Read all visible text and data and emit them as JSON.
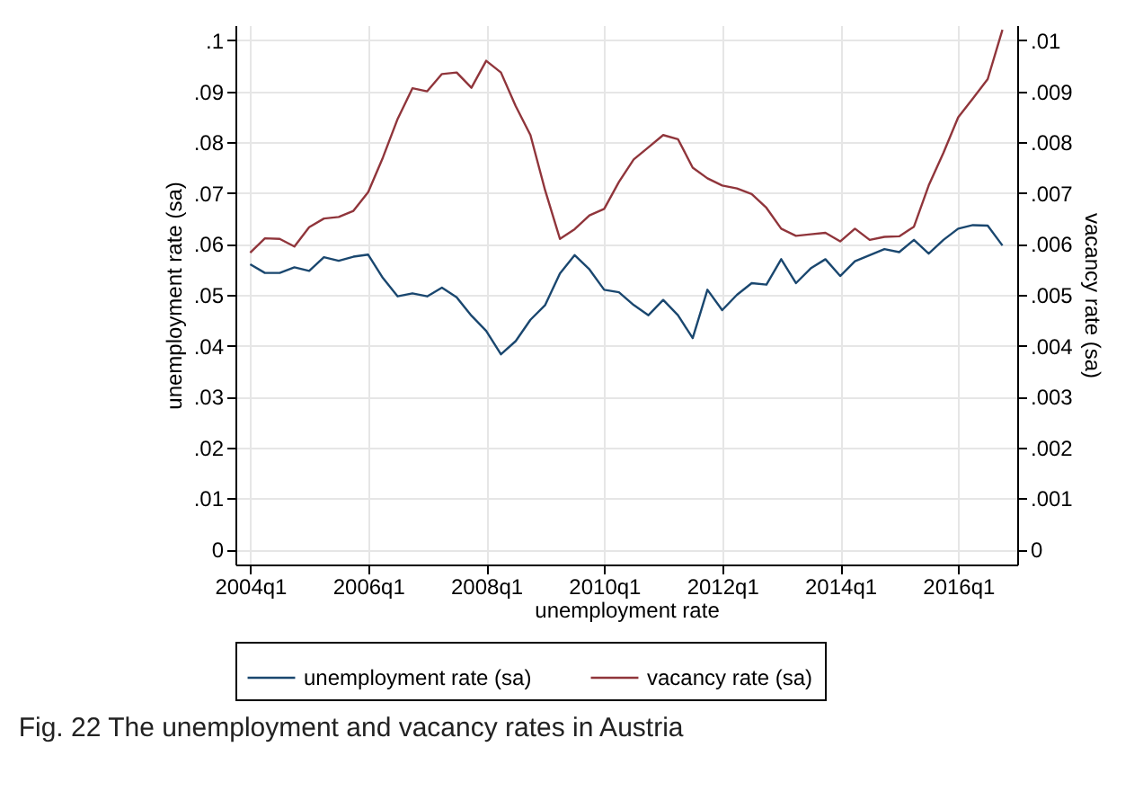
{
  "chart_data": {
    "type": "line",
    "title": "Fig. 22  The unemployment and vacancy rates in Austria",
    "xlabel": "unemployment rate",
    "ylabel": "unemployment rate (sa)",
    "y2label": "vacancy rate (sa)",
    "categories": [
      "2004q1",
      null,
      null,
      null,
      null,
      null,
      null,
      null,
      "2006q1",
      null,
      null,
      null,
      null,
      null,
      null,
      null,
      "2008q1",
      null,
      null,
      null,
      null,
      null,
      null,
      null,
      "2010q1",
      null,
      null,
      null,
      null,
      null,
      null,
      null,
      "2012q1",
      null,
      null,
      null,
      null,
      null,
      null,
      null,
      "2014q1",
      null,
      null,
      null,
      null,
      null,
      null,
      null,
      "2016q1",
      null,
      null,
      null
    ],
    "series": [
      {
        "name": "unemployment rate (sa)",
        "color": "#1a476f",
        "values": [
          0.056,
          0.0543,
          0.0543,
          0.0554,
          0.0547,
          0.0574,
          0.0567,
          0.0575,
          0.0579,
          0.0533,
          0.0497,
          0.0503,
          0.0497,
          0.0514,
          0.0495,
          0.0459,
          0.0429,
          0.0383,
          0.0409,
          0.0451,
          0.048,
          0.0542,
          0.0578,
          0.055,
          0.051,
          0.0505,
          0.048,
          0.046,
          0.049,
          0.046,
          0.0415,
          0.051,
          0.047,
          0.05,
          0.0523,
          0.052,
          0.057,
          0.0523,
          0.0552,
          0.057,
          0.0537,
          0.0566,
          0.0578,
          0.059,
          0.0584,
          0.0608,
          0.0581,
          0.0608,
          0.063,
          0.0637,
          0.0636,
          0.0597
        ]
      },
      {
        "name": "vacancy rate (sa)",
        "color": "#90353b",
        "axis": "y2",
        "values": [
          0.00583,
          0.00611,
          0.0061,
          0.00595,
          0.00633,
          0.0065,
          0.00653,
          0.00665,
          0.00702,
          0.0077,
          0.00846,
          0.00906,
          0.009,
          0.00934,
          0.00937,
          0.00907,
          0.0096,
          0.00937,
          0.00871,
          0.00814,
          0.00705,
          0.0061,
          0.00629,
          0.00656,
          0.00669,
          0.00722,
          0.00766,
          0.0079,
          0.00814,
          0.00806,
          0.0075,
          0.00729,
          0.00715,
          0.00709,
          0.00698,
          0.00671,
          0.0063,
          0.00616,
          0.00619,
          0.00622,
          0.00605,
          0.0063,
          0.00608,
          0.00614,
          0.00615,
          0.00634,
          0.00715,
          0.00779,
          0.00849,
          0.00886,
          0.00924,
          0.01021
        ]
      }
    ],
    "ylim": [
      -0.003,
      0.103
    ],
    "yticks": [
      {
        "value": 0,
        "label": "0"
      },
      {
        "value": 0.01,
        "label": ".01"
      },
      {
        "value": 0.02,
        "label": ".02"
      },
      {
        "value": 0.03,
        "label": ".03"
      },
      {
        "value": 0.04,
        "label": ".04"
      },
      {
        "value": 0.05,
        "label": ".05"
      },
      {
        "value": 0.06,
        "label": ".06"
      },
      {
        "value": 0.07,
        "label": ".07"
      },
      {
        "value": 0.08,
        "label": ".08"
      },
      {
        "value": 0.09,
        "label": ".09"
      },
      {
        "value": 0.1,
        "label": ".1"
      }
    ],
    "y2lim": [
      -0.0003,
      0.0103
    ],
    "y2ticks": [
      {
        "value": 0,
        "label": "0"
      },
      {
        "value": 0.001,
        "label": ".001"
      },
      {
        "value": 0.002,
        "label": ".002"
      },
      {
        "value": 0.003,
        "label": ".003"
      },
      {
        "value": 0.004,
        "label": ".004"
      },
      {
        "value": 0.005,
        "label": ".005"
      },
      {
        "value": 0.006,
        "label": ".006"
      },
      {
        "value": 0.007,
        "label": ".007"
      },
      {
        "value": 0.008,
        "label": ".008"
      },
      {
        "value": 0.009,
        "label": ".009"
      },
      {
        "value": 0.01,
        "label": ".01"
      }
    ],
    "grid": true,
    "legend": "bottom",
    "line_style": "solid"
  }
}
